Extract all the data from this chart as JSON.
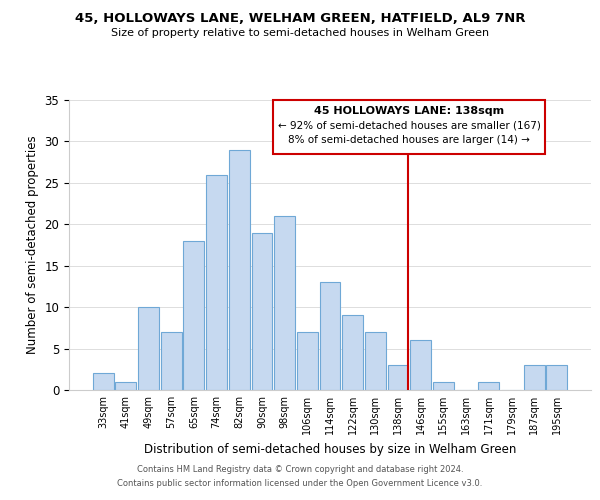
{
  "title": "45, HOLLOWAYS LANE, WELHAM GREEN, HATFIELD, AL9 7NR",
  "subtitle": "Size of property relative to semi-detached houses in Welham Green",
  "xlabel": "Distribution of semi-detached houses by size in Welham Green",
  "ylabel": "Number of semi-detached properties",
  "bar_labels": [
    "33sqm",
    "41sqm",
    "49sqm",
    "57sqm",
    "65sqm",
    "74sqm",
    "82sqm",
    "90sqm",
    "98sqm",
    "106sqm",
    "114sqm",
    "122sqm",
    "130sqm",
    "138sqm",
    "146sqm",
    "155sqm",
    "163sqm",
    "171sqm",
    "179sqm",
    "187sqm",
    "195sqm"
  ],
  "bar_values": [
    2,
    1,
    10,
    7,
    18,
    26,
    29,
    19,
    21,
    7,
    13,
    9,
    7,
    3,
    6,
    1,
    0,
    1,
    0,
    3,
    3
  ],
  "bar_color": "#c6d9f0",
  "bar_edge_color": "#6fa8d6",
  "highlight_line_color": "#cc0000",
  "annotation_title": "45 HOLLOWAYS LANE: 138sqm",
  "annotation_line1": "← 92% of semi-detached houses are smaller (167)",
  "annotation_line2": "8% of semi-detached houses are larger (14) →",
  "annotation_box_color": "#ffffff",
  "annotation_box_edge_color": "#cc0000",
  "ylim": [
    0,
    35
  ],
  "yticks": [
    0,
    5,
    10,
    15,
    20,
    25,
    30,
    35
  ],
  "footnote1": "Contains HM Land Registry data © Crown copyright and database right 2024.",
  "footnote2": "Contains public sector information licensed under the Open Government Licence v3.0.",
  "bg_color": "#ffffff",
  "grid_color": "#dddddd"
}
